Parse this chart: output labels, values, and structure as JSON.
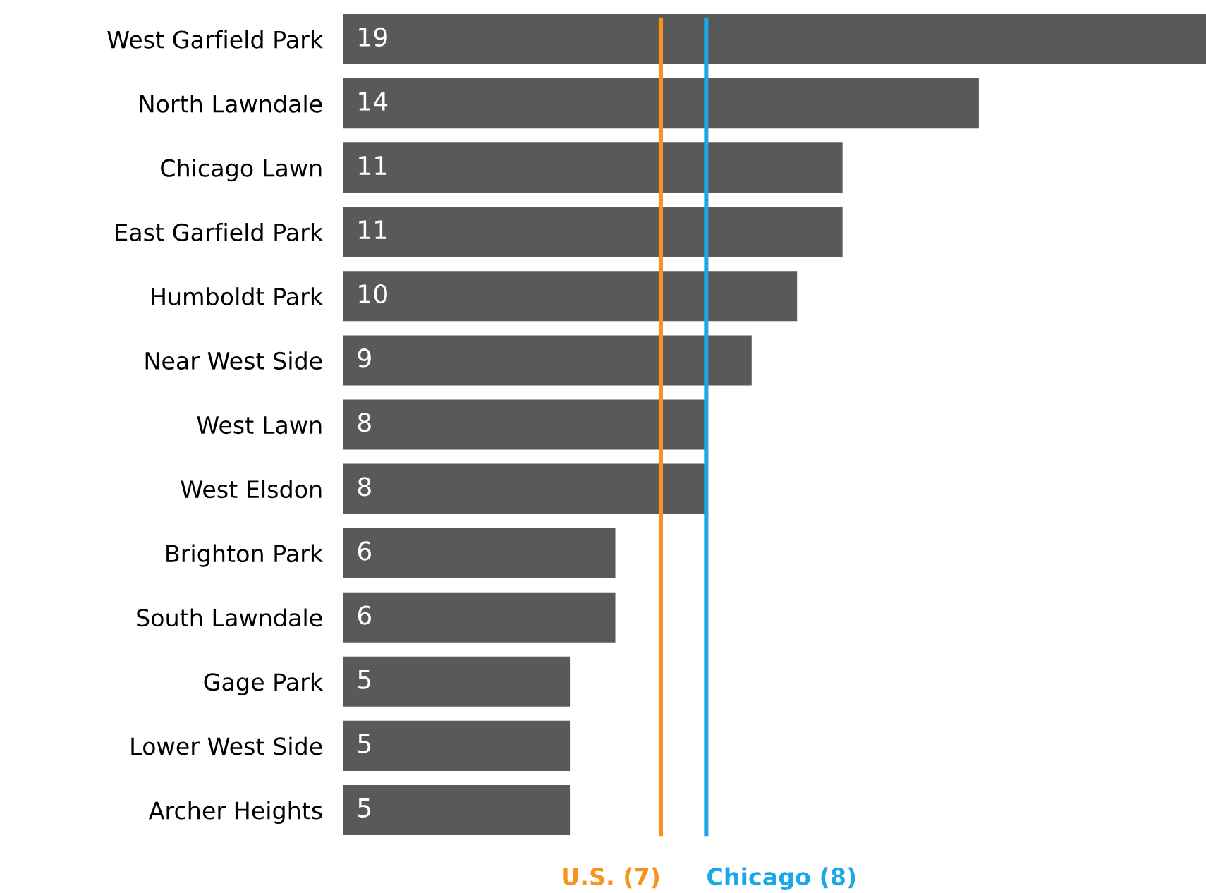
{
  "chart_data": {
    "type": "bar",
    "orientation": "horizontal",
    "categories": [
      "West Garfield Park",
      "North Lawndale",
      "Chicago Lawn",
      "East Garfield Park",
      "Humboldt Park",
      "Near West Side",
      "West Lawn",
      "West Elsdon",
      "Brighton Park",
      "South Lawndale",
      "Gage Park",
      "Lower West Side",
      "Archer Heights"
    ],
    "values": [
      19,
      14,
      11,
      11,
      10,
      9,
      8,
      8,
      6,
      6,
      5,
      5,
      5
    ],
    "color": "#595959",
    "data_labels": true,
    "ref_lines": [
      {
        "axis": "x",
        "value": 7,
        "label": "U.S. (7)",
        "color": "#f7941d"
      },
      {
        "axis": "x",
        "value": 8,
        "label": "Chicago (8)",
        "color": "#1aa9e6"
      }
    ],
    "grid": false,
    "legend": false
  }
}
